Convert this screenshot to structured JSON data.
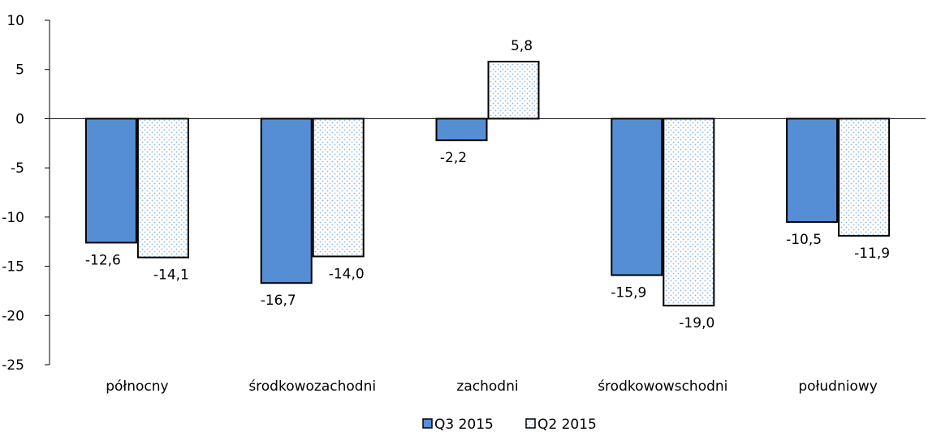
{
  "chart_data": {
    "type": "bar",
    "categories": [
      "północny",
      "środkowozachodni",
      "zachodni",
      "środkowowschodni",
      "południowy"
    ],
    "series": [
      {
        "name": "Q3 2015",
        "values": [
          -12.6,
          -16.7,
          -2.2,
          -15.9,
          -10.5
        ],
        "labels": [
          "-12,6",
          "-16,7",
          "-2,2",
          "-15,9",
          "-10,5"
        ],
        "color": "#558ED5",
        "pattern": "solid"
      },
      {
        "name": "Q2 2015",
        "values": [
          -14.1,
          -14.0,
          5.8,
          -19.0,
          -11.9
        ],
        "labels": [
          "-14,1",
          "-14,0",
          "5,8",
          "-19,0",
          "-11,9"
        ],
        "color": "#8DB4E2",
        "pattern": "dotted"
      }
    ],
    "yticks": [
      "10",
      "5",
      "0",
      "-5",
      "-10",
      "-15",
      "-20",
      "-25"
    ],
    "ylim": [
      -25,
      10
    ],
    "title": "",
    "xlabel": "",
    "ylabel": "",
    "grid": false,
    "legend_position": "bottom-center"
  }
}
